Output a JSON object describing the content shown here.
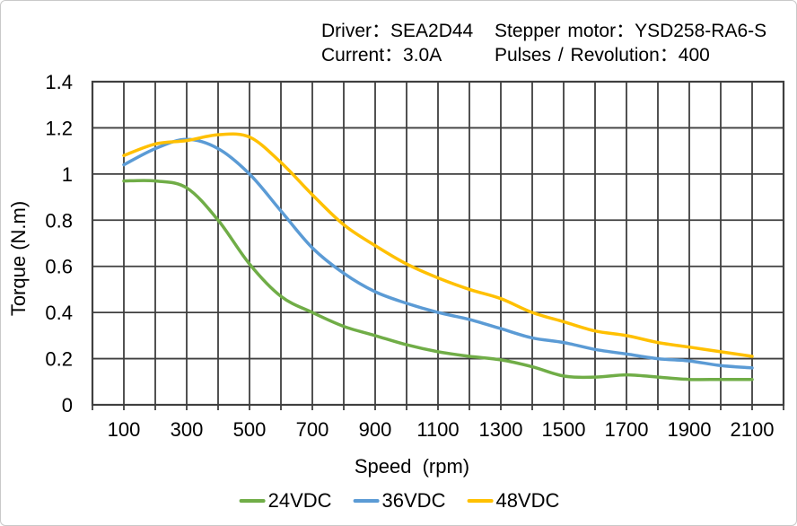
{
  "header": {
    "driver": "Driver：SEA2D44",
    "stepper_motor": "Stepper motor：YSD258-RA6-S",
    "current": "Current：3.0A",
    "pulses_per_revolution": "Pulses / Revolution：400"
  },
  "colors": {
    "grid": "#3f3f3f",
    "frame": "#3f3f3f",
    "text": "#000000",
    "border": "#c9c9c9"
  },
  "chart_data": {
    "type": "line",
    "title": "",
    "xlabel": "Speed (rpm)",
    "ylabel": "Torque (N.m)",
    "xlim": [
      0,
      2200
    ],
    "ylim": [
      0,
      1.4
    ],
    "x_grid_step": 100,
    "y_grid_step": 0.2,
    "grid": true,
    "legend_position": "bottom",
    "x": [
      100,
      200,
      300,
      400,
      500,
      600,
      700,
      800,
      900,
      1000,
      1100,
      1200,
      1300,
      1400,
      1500,
      1600,
      1700,
      1800,
      1900,
      2000,
      2100
    ],
    "x_tick_labels": [
      100,
      300,
      500,
      700,
      900,
      1100,
      1300,
      1500,
      1700,
      1900,
      2100
    ],
    "y_ticks": [
      [
        0,
        "0"
      ],
      [
        0.2,
        "0.2"
      ],
      [
        0.4,
        "0.4"
      ],
      [
        0.6,
        "0.6"
      ],
      [
        0.8,
        "0.8"
      ],
      [
        1,
        "1"
      ],
      [
        1.2,
        "1.2"
      ],
      [
        1.4,
        "1.4"
      ]
    ],
    "series": [
      {
        "name": "24VDC",
        "color": "#70AD47",
        "values": [
          0.97,
          0.97,
          0.94,
          0.8,
          0.61,
          0.47,
          0.4,
          0.34,
          0.3,
          0.26,
          0.23,
          0.21,
          0.195,
          0.165,
          0.125,
          0.12,
          0.13,
          0.12,
          0.11,
          0.11,
          0.11
        ]
      },
      {
        "name": "36VDC",
        "color": "#5B9BD5",
        "values": [
          1.04,
          1.11,
          1.15,
          1.11,
          1.0,
          0.84,
          0.68,
          0.57,
          0.49,
          0.44,
          0.4,
          0.37,
          0.33,
          0.29,
          0.27,
          0.24,
          0.22,
          0.2,
          0.19,
          0.17,
          0.16
        ]
      },
      {
        "name": "48VDC",
        "color": "#FFC000",
        "values": [
          1.08,
          1.13,
          1.145,
          1.17,
          1.16,
          1.05,
          0.91,
          0.78,
          0.69,
          0.61,
          0.55,
          0.5,
          0.46,
          0.4,
          0.36,
          0.32,
          0.3,
          0.27,
          0.25,
          0.23,
          0.21
        ]
      }
    ]
  }
}
